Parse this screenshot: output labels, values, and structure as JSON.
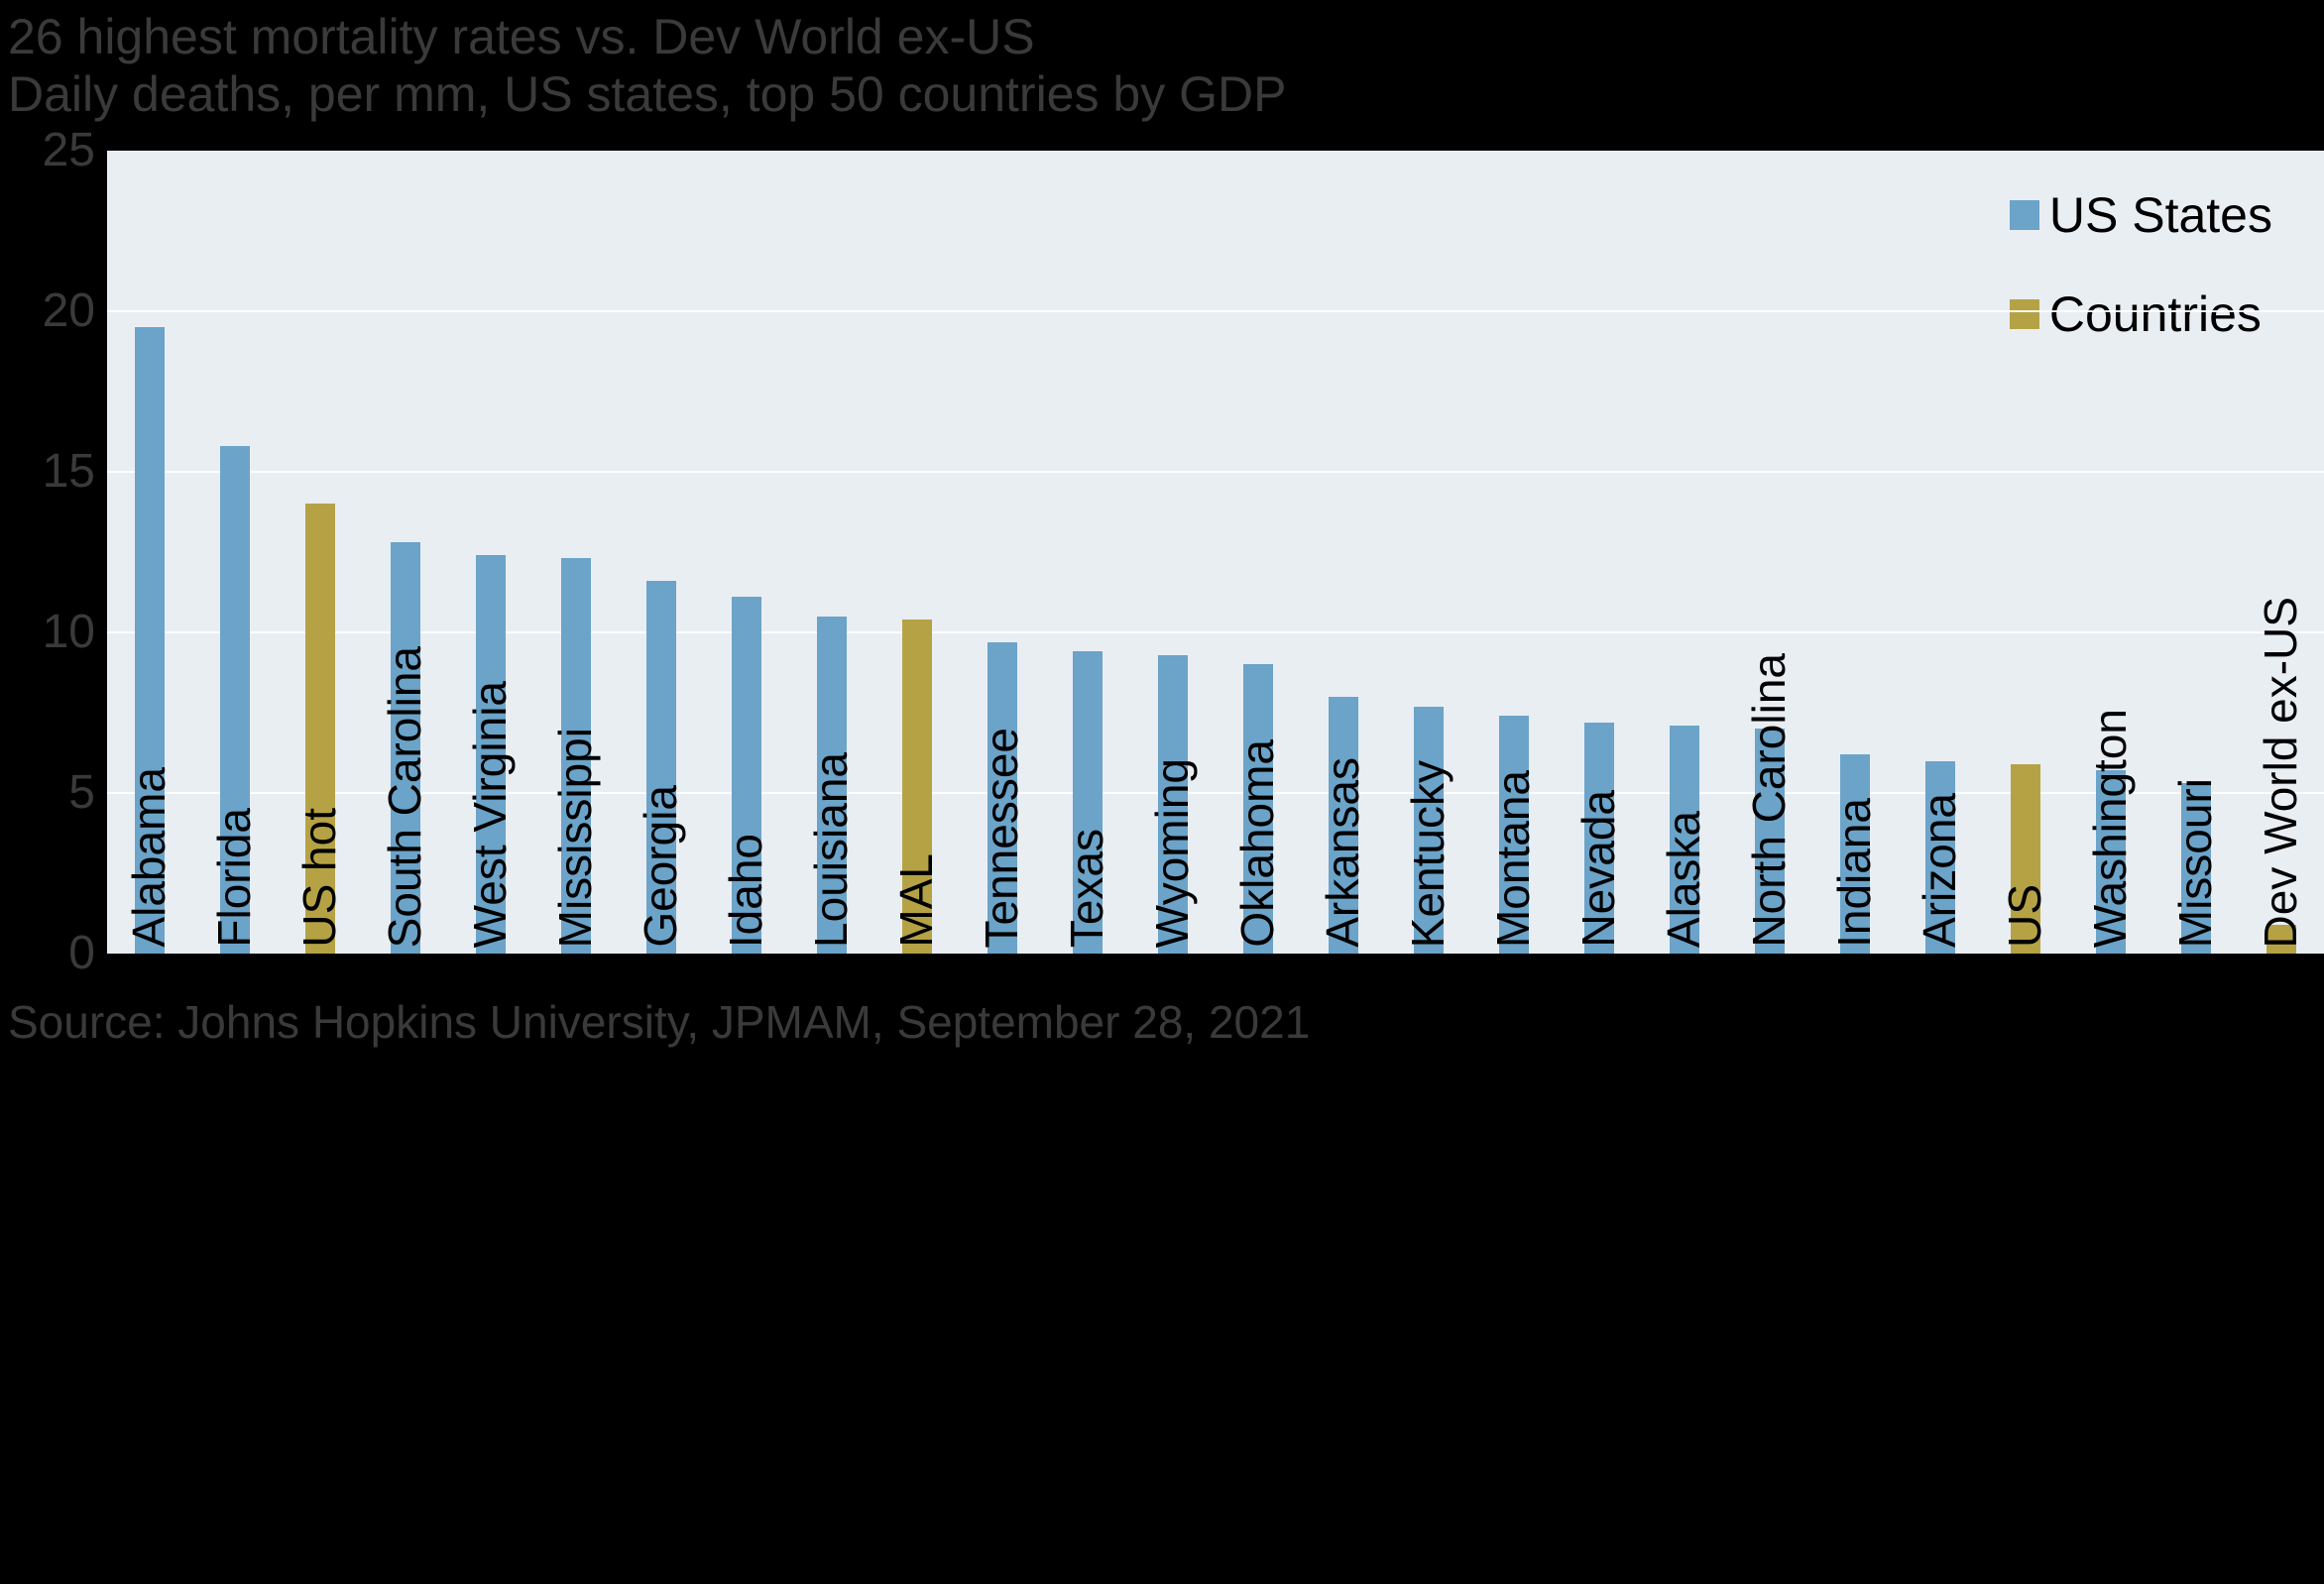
{
  "page": {
    "background_color": "#000000",
    "plot_background_color": "#e9eef3"
  },
  "chart_data": {
    "type": "bar",
    "title": "26 highest mortality rates vs. Dev World ex-US",
    "subtitle": "Daily deaths, per mm, US states, top 50 countries by GDP",
    "source": "Source: Johns Hopkins University, JPMAM, September 28, 2021",
    "ylabel": "",
    "xlabel": "",
    "ylim": [
      0,
      25
    ],
    "yticks": [
      0,
      5,
      10,
      15,
      20,
      25
    ],
    "grid": "horizontal",
    "legend_position": "top-right",
    "legend": [
      {
        "label": "US States",
        "key": "state",
        "color": "#6ba3c9"
      },
      {
        "label": "Countries",
        "key": "country",
        "color": "#b5a245"
      }
    ],
    "colors": {
      "state": "#6ba3c9",
      "country": "#b5a245"
    },
    "bars": [
      {
        "label": "Alabama",
        "value": 19.5,
        "group": "state"
      },
      {
        "label": "Florida",
        "value": 15.8,
        "group": "state"
      },
      {
        "label": "US hot",
        "value": 14.0,
        "group": "country"
      },
      {
        "label": "South Carolina",
        "value": 12.8,
        "group": "state"
      },
      {
        "label": "West Virginia",
        "value": 12.4,
        "group": "state"
      },
      {
        "label": "Mississippi",
        "value": 12.3,
        "group": "state"
      },
      {
        "label": "Georgia",
        "value": 11.6,
        "group": "state"
      },
      {
        "label": "Idaho",
        "value": 11.1,
        "group": "state"
      },
      {
        "label": "Louisiana",
        "value": 10.5,
        "group": "state"
      },
      {
        "label": "MAL",
        "value": 10.4,
        "group": "country"
      },
      {
        "label": "Tennessee",
        "value": 9.7,
        "group": "state"
      },
      {
        "label": "Texas",
        "value": 9.4,
        "group": "state"
      },
      {
        "label": "Wyoming",
        "value": 9.3,
        "group": "state"
      },
      {
        "label": "Oklahoma",
        "value": 9.0,
        "group": "state"
      },
      {
        "label": "Arkansas",
        "value": 8.0,
        "group": "state"
      },
      {
        "label": "Kentucky",
        "value": 7.7,
        "group": "state"
      },
      {
        "label": "Montana",
        "value": 7.4,
        "group": "state"
      },
      {
        "label": "Nevada",
        "value": 7.2,
        "group": "state"
      },
      {
        "label": "Alaska",
        "value": 7.1,
        "group": "state"
      },
      {
        "label": "North Carolina",
        "value": 7.0,
        "group": "state"
      },
      {
        "label": "Indiana",
        "value": 6.2,
        "group": "state"
      },
      {
        "label": "Arizona",
        "value": 6.0,
        "group": "state"
      },
      {
        "label": "US",
        "value": 5.9,
        "group": "country"
      },
      {
        "label": "Washington",
        "value": 5.7,
        "group": "state"
      },
      {
        "label": "Missouri",
        "value": 5.3,
        "group": "state"
      },
      {
        "label": "Dev World ex-US",
        "value": 0.9,
        "group": "country"
      }
    ]
  }
}
